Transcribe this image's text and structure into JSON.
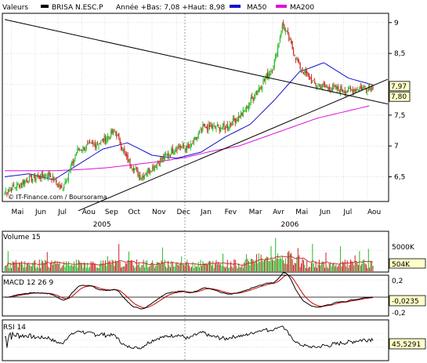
{
  "header": {
    "values_label": "Valeurs",
    "stock_name": "BRISA N.ESC.P",
    "range_text": "Année +Bas: 7,08 +Haut: 8,98",
    "ma50_label": "MA50",
    "ma200_label": "MA200"
  },
  "colors": {
    "up": "#22bb22",
    "down": "#cc2222",
    "ma50": "#1111cc",
    "ma200": "#dd11dd",
    "volume_ma": "#cc2222",
    "macd": "#000000",
    "macd_signal": "#cc0000",
    "rsi": "#000000",
    "value_box": "#ffffc8"
  },
  "credit": "© IT-Finance.com / Boursorama",
  "chart_data": [
    {
      "type": "candlestick",
      "title": "BRISA N.ESC.P",
      "y_ticks": [
        "9",
        "8,5",
        "8",
        "7,5",
        "7",
        "6,5"
      ],
      "y_tick_values": [
        9,
        8.5,
        8,
        7.5,
        7,
        6.5
      ],
      "ylim": [
        6.1,
        9.15
      ],
      "month_labels": [
        "Mai",
        "Jun",
        "Jul",
        "Aou",
        "Sep",
        "Oct",
        "Nov",
        "Dec",
        "Jan",
        "Fev",
        "Mar",
        "Avr",
        "Mai",
        "Jun",
        "Jul",
        "Aou"
      ],
      "year_labels": [
        "2005",
        "2006"
      ],
      "close_key_points": [
        [
          "Mai 2005",
          6.25
        ],
        [
          "Jun 2005",
          6.45
        ],
        [
          "Jul 2005",
          6.55
        ],
        [
          "Jul 2005 end",
          6.3
        ],
        [
          "Aou 2005",
          6.95
        ],
        [
          "Sep 2005",
          7.05
        ],
        [
          "Sep 2005 end",
          7.25
        ],
        [
          "Oct 2005",
          6.8
        ],
        [
          "Oct 2005 mid",
          6.5
        ],
        [
          "Nov 2005",
          6.75
        ],
        [
          "Dec 2005",
          7.0
        ],
        [
          "Dec 2005 mid",
          6.95
        ],
        [
          "Jan 2006",
          7.3
        ],
        [
          "Fev 2006",
          7.3
        ],
        [
          "Mar 2006",
          7.55
        ],
        [
          "Mar 2006 mid",
          7.85
        ],
        [
          "Avr 2006",
          8.3
        ],
        [
          "Avr 2006 peak",
          8.98
        ],
        [
          "Mai 2006",
          8.3
        ],
        [
          "Mai 2006 end",
          8.0
        ],
        [
          "Jun 2006",
          7.95
        ],
        [
          "Jul 2006",
          7.9
        ],
        [
          "Aou 2006",
          7.97
        ]
      ],
      "ma50": {
        "name": "MA50",
        "key_points": [
          6.5,
          6.55,
          6.45,
          6.7,
          6.95,
          7.05,
          6.85,
          6.8,
          6.9,
          7.15,
          7.35,
          7.75,
          8.2,
          8.35,
          8.1,
          7.99
        ]
      },
      "ma200": {
        "name": "MA200",
        "key_points": [
          6.6,
          6.6,
          6.6,
          6.62,
          6.65,
          6.7,
          6.75,
          6.82,
          6.92,
          7.0,
          7.15,
          7.3,
          7.45,
          7.55,
          7.65
        ]
      },
      "trendlines": [
        {
          "from": [
            "Mai 2005",
            9.05
          ],
          "to": [
            "Aou 2006",
            7.68
          ]
        },
        {
          "from": [
            "Aou 2005",
            5.95
          ],
          "to": [
            "Aou 2006",
            8.08
          ]
        }
      ],
      "last_values": [
        "7,97",
        "7,80"
      ]
    },
    {
      "type": "bar",
      "title": "Volume 15",
      "y_ticks": [
        "5000K"
      ],
      "last_value": "504K"
    },
    {
      "type": "line",
      "title": "MACD 12 26 9",
      "y_ticks": [
        "0,2",
        "0",
        "-0,2"
      ],
      "last_value": "-0,0235"
    },
    {
      "type": "line",
      "title": "RSI 14",
      "last_value": "45,5291"
    }
  ]
}
